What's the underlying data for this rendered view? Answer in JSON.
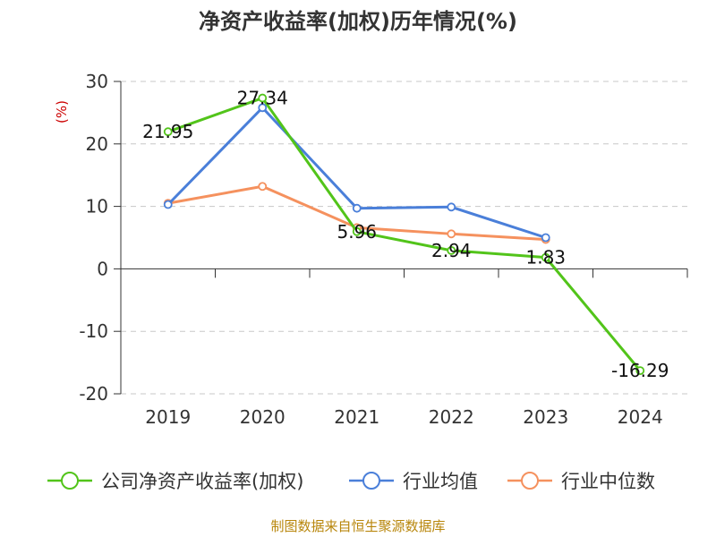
{
  "chart_data": {
    "type": "line",
    "title": "净资产收益率(加权)历年情况(%)",
    "ylabel": "(%)",
    "categories": [
      "2019",
      "2020",
      "2021",
      "2022",
      "2023",
      "2024"
    ],
    "ylim": [
      -20,
      30
    ],
    "yticks": [
      30,
      20,
      10,
      0,
      -10,
      -20
    ],
    "grid": true,
    "legend_position": "bottom",
    "series": [
      {
        "name": "公司净资产收益率(加权)",
        "color": "#52c41a",
        "values": [
          21.95,
          27.34,
          5.96,
          2.94,
          1.83,
          -16.29
        ],
        "labels": [
          "21.95",
          "27.34",
          "5.96",
          "2.94",
          "1.83",
          "-16.29"
        ]
      },
      {
        "name": "行业均值",
        "color": "#4a7fd9",
        "values": [
          10.3,
          25.8,
          9.7,
          9.9,
          5.0,
          null
        ]
      },
      {
        "name": "行业中位数",
        "color": "#f5915e",
        "values": [
          10.5,
          13.2,
          6.6,
          5.6,
          4.7,
          null
        ]
      }
    ]
  },
  "footer": {
    "source": "制图数据来自恒生聚源数据库"
  }
}
